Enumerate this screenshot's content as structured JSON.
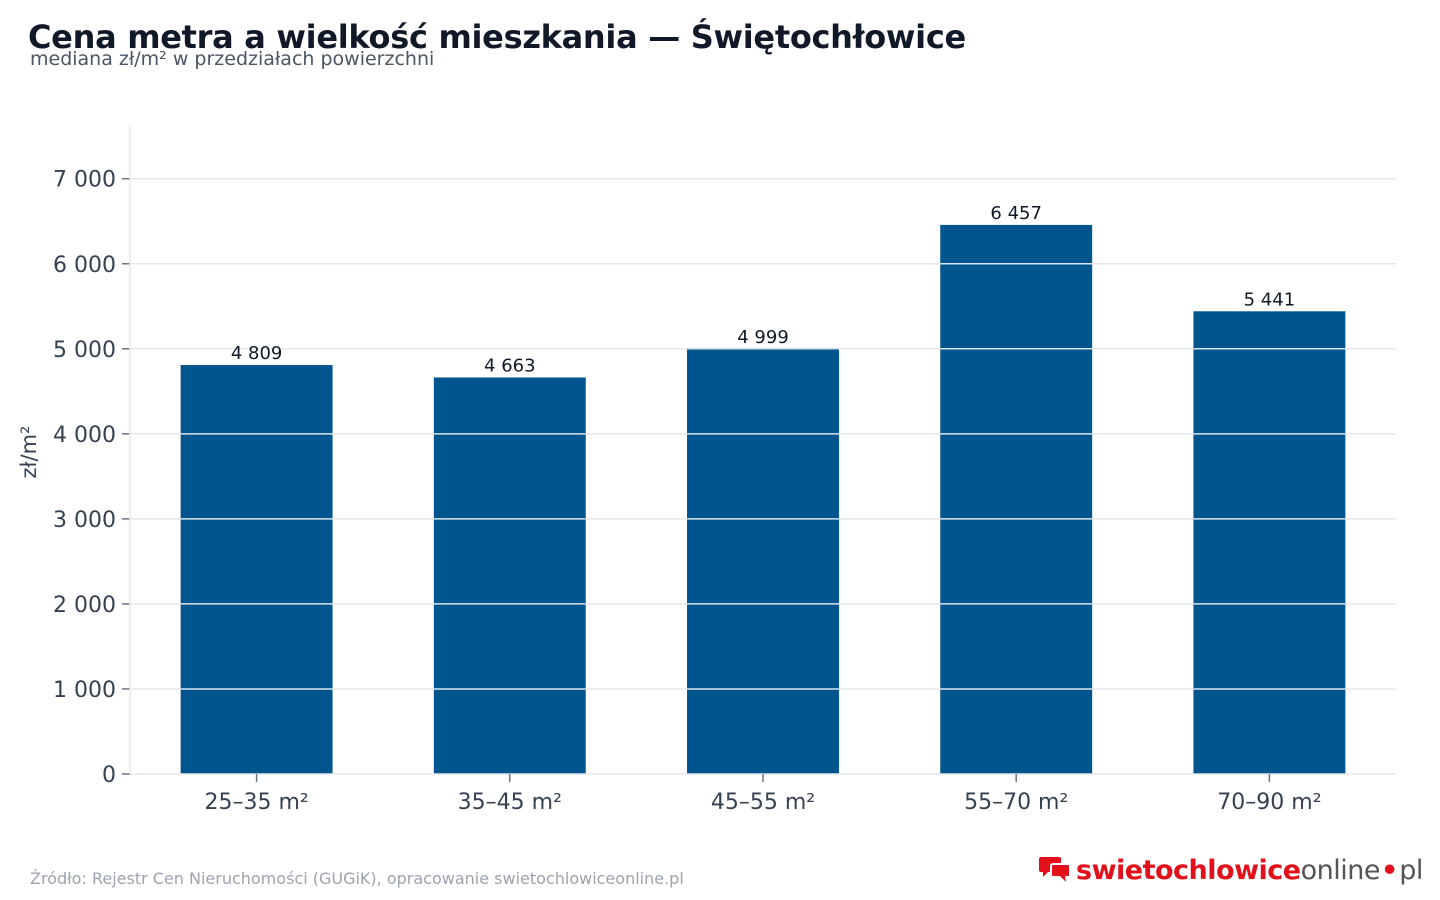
{
  "header": {
    "title": "Cena metra a wielkość mieszkania — Świętochłowice",
    "subtitle": "mediana zł/m² w przedziałach powierzchni"
  },
  "footer": {
    "source": "Źródło: Rejestr Cen Nieruchomości (GUGiK), opracowanie swietochlowiceonline.pl"
  },
  "logo": {
    "part_red": "swietochlowice",
    "part_gray": "online",
    "dot": "•",
    "tld": "pl",
    "icon": "chat-bubbles-icon"
  },
  "colors": {
    "bar": "#00558f",
    "grid": "#e5e7eb",
    "logo_red": "#e3101b"
  },
  "chart_data": {
    "type": "bar",
    "title": "Cena metra a wielkość mieszkania — Świętochłowice",
    "subtitle": "mediana zł/m² w przedziałach powierzchni",
    "xlabel": "",
    "ylabel": "zł/m²",
    "categories": [
      "25–35 m²",
      "35–45 m²",
      "45–55 m²",
      "55–70 m²",
      "70–90 m²"
    ],
    "values": [
      4809,
      4663,
      4999,
      6457,
      5441
    ],
    "value_labels": [
      "4 809",
      "4 663",
      "4 999",
      "6 457",
      "5 441"
    ],
    "ylim": [
      0,
      7620
    ],
    "yticks": [
      0,
      1000,
      2000,
      3000,
      4000,
      5000,
      6000,
      7000
    ],
    "ytick_labels": [
      "0",
      "1 000",
      "2 000",
      "3 000",
      "4 000",
      "5 000",
      "6 000",
      "7 000"
    ],
    "grid": true
  }
}
